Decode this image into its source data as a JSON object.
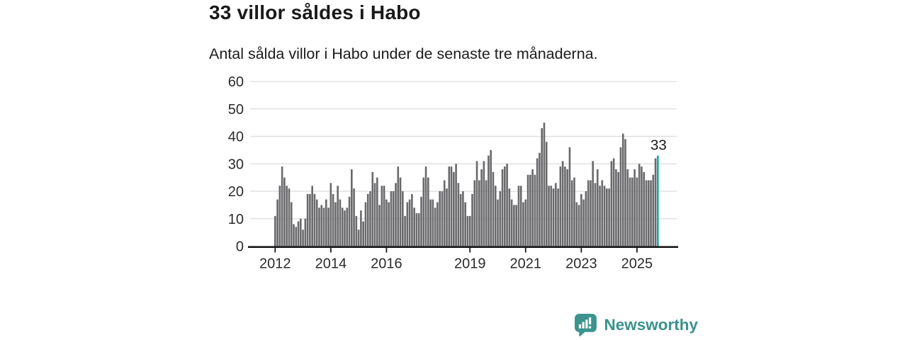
{
  "header": {
    "title": "33 villor såldes i Habo",
    "subtitle": "Antal sålda villor i Habo under de senaste tre månaderna."
  },
  "chart_data": {
    "type": "bar",
    "title": "33 villor såldes i Habo",
    "subtitle": "Antal sålda villor i Habo under de senaste tre månaderna.",
    "frequency": "monthly",
    "x_start": "2012-01",
    "x_end": "2025-10",
    "ylim": [
      0,
      60
    ],
    "grid": true,
    "y_ticks": [
      0,
      10,
      20,
      30,
      40,
      50,
      60
    ],
    "x_ticks": [
      {
        "label": "2012",
        "month_index": 0
      },
      {
        "label": "2014",
        "month_index": 24
      },
      {
        "label": "2016",
        "month_index": 48
      },
      {
        "label": "2019",
        "month_index": 84
      },
      {
        "label": "2021",
        "month_index": 108
      },
      {
        "label": "2023",
        "month_index": 132
      },
      {
        "label": "2025",
        "month_index": 156
      }
    ],
    "values": [
      11,
      17,
      22,
      29,
      25,
      22,
      21,
      16,
      8,
      7,
      9,
      10,
      6,
      10,
      19,
      19,
      22,
      19,
      17,
      14,
      15,
      14,
      17,
      14,
      23,
      19,
      16,
      22,
      17,
      14,
      13,
      14,
      18,
      28,
      21,
      11,
      6,
      13,
      9,
      16,
      19,
      20,
      27,
      23,
      25,
      15,
      22,
      22,
      17,
      16,
      20,
      20,
      23,
      29,
      25,
      20,
      11,
      16,
      17,
      19,
      14,
      12,
      12,
      18,
      25,
      29,
      25,
      17,
      17,
      14,
      16,
      20,
      20,
      24,
      21,
      29,
      29,
      27,
      30,
      23,
      19,
      20,
      16,
      11,
      11,
      19,
      24,
      31,
      24,
      28,
      31,
      24,
      33,
      35,
      27,
      22,
      17,
      20,
      28,
      29,
      30,
      21,
      17,
      15,
      15,
      22,
      22,
      16,
      17,
      26,
      26,
      28,
      26,
      32,
      34,
      43,
      45,
      38,
      22,
      22,
      21,
      23,
      21,
      29,
      31,
      29,
      28,
      36,
      24,
      25,
      16,
      15,
      19,
      17,
      20,
      24,
      24,
      31,
      23,
      28,
      22,
      24,
      22,
      21,
      21,
      31,
      32,
      28,
      27,
      36,
      41,
      39,
      28,
      25,
      25,
      28,
      25,
      30,
      29,
      27,
      24,
      24,
      24,
      26,
      32,
      33
    ],
    "highlight_last": true,
    "last_value_label": "33",
    "bar_color": "#69696C",
    "highlight_color": "#16A8A1",
    "grid_color": "#dcdcdc",
    "axis_color": "#1a1a1a",
    "tick_label_color": "#2b2b2b",
    "legend_position": "none"
  },
  "footer": {
    "brand": "Newsworthy",
    "brand_color": "#3A928B",
    "logo_color": "#3D938D"
  }
}
